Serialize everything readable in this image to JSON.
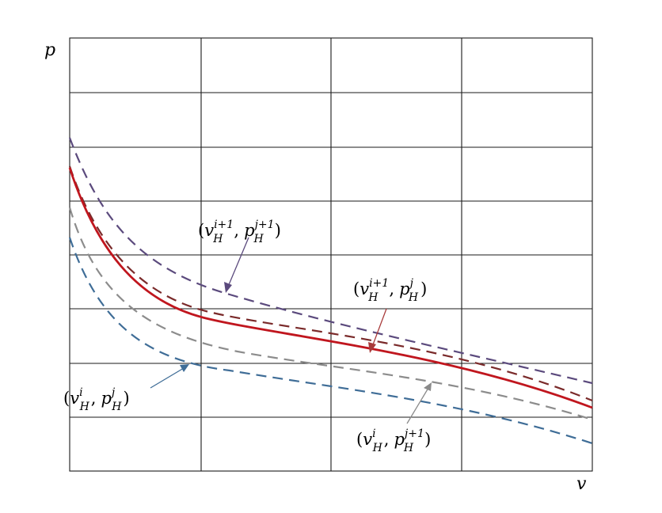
{
  "axes": {
    "x_label": "v",
    "y_label": "p"
  },
  "annotations": [
    {
      "key": "i1_j1",
      "base1": "v",
      "sup1": "i+1",
      "base2": "p",
      "sup2": "j+1",
      "sub": "H",
      "color": "#5b4a7d"
    },
    {
      "key": "i1_j",
      "base1": "v",
      "sup1": "i+1",
      "base2": "p",
      "sup2": "j",
      "sub": "H",
      "color": "#a83a3a"
    },
    {
      "key": "i_j",
      "base1": "v",
      "sup1": "i",
      "base2": "p",
      "sup2": "j",
      "sub": "H",
      "color": "#3f6d97"
    },
    {
      "key": "i_j1",
      "base1": "v",
      "sup1": "i",
      "base2": "p",
      "sup2": "j+1",
      "sub": "H",
      "color": "#8a8a8a"
    }
  ],
  "curves": [
    {
      "name": "upper-dashed",
      "style": "dashed",
      "color": "#5b4a7d"
    },
    {
      "name": "dark-red-dashed",
      "style": "dashed",
      "color": "#7a2a2a"
    },
    {
      "name": "red-solid",
      "style": "solid",
      "color": "#c0161e"
    },
    {
      "name": "gray-dashed",
      "style": "dashed",
      "color": "#8c8c8c"
    },
    {
      "name": "blue-dashed",
      "style": "dashed",
      "color": "#3f6d97"
    }
  ],
  "colors": {
    "grid": "#1a1a1a",
    "background": "#ffffff"
  }
}
